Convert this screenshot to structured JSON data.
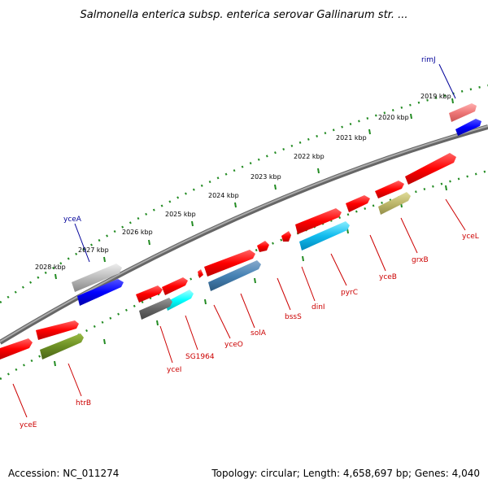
{
  "title": "Salmonella enterica subsp. enterica serovar Gallinarum str. ...",
  "footer": {
    "accession": "Accession: NC_011274",
    "summary": "Topology: circular; Length: 4,658,697 bp; Genes: 4,040"
  },
  "scale_labels": [
    "2019 kbp",
    "2020 kbp",
    "2021 kbp",
    "2022 kbp",
    "2023 kbp",
    "2024 kbp",
    "2025 kbp",
    "2026 kbp",
    "2027 kbp",
    "2028 kbp"
  ],
  "genes": {
    "rimJ": "rimJ",
    "yceA": "yceA",
    "yceL": "yceL",
    "grxB": "grxB",
    "yceB": "yceB",
    "pyrC": "pyrC",
    "dinI": "dinI",
    "bssS": "bssS",
    "solA": "solA",
    "yceO": "yceO",
    "SG1964": "SG1964",
    "yceI": "yceI",
    "htrB": "htrB",
    "yceE": "yceE"
  },
  "colors": {
    "backbone": "#888888",
    "forward_gene": "#ff0000",
    "reverse_gene": "#0000ff",
    "label_red": "#cc0000",
    "label_blue": "#000099",
    "tick": "#228b22"
  }
}
